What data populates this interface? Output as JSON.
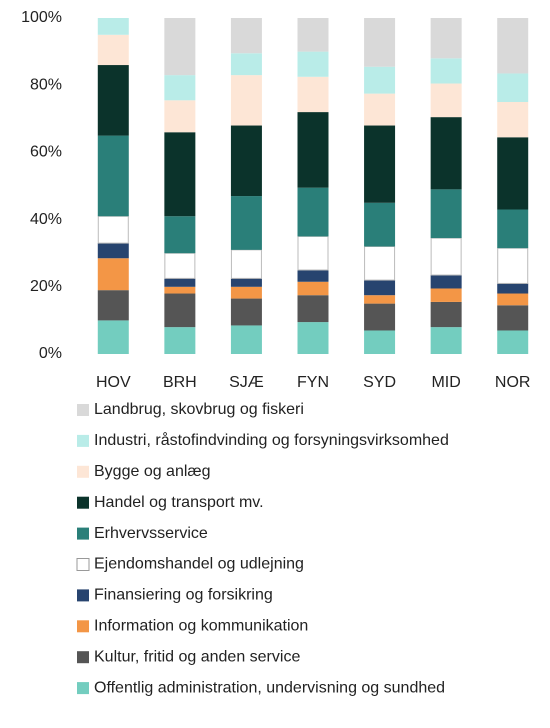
{
  "chart_data": {
    "type": "stacked_bar",
    "categories": [
      "HOV",
      "BRH",
      "SJÆ",
      "FYN",
      "SYD",
      "MID",
      "NOR"
    ],
    "ylim": [
      0,
      100
    ],
    "yticks": [
      {
        "value": 0,
        "label": "0%"
      },
      {
        "value": 20,
        "label": "20%"
      },
      {
        "value": 40,
        "label": "40%"
      },
      {
        "value": 60,
        "label": "60%"
      },
      {
        "value": 80,
        "label": "80%"
      },
      {
        "value": 100,
        "label": "100%"
      }
    ],
    "grid": false,
    "series": [
      {
        "name": "Offentlig administration, undervisning og sundhed",
        "color": "#73cdbf",
        "values": [
          10,
          8,
          8.5,
          9.5,
          7,
          8,
          7
        ]
      },
      {
        "name": "Kultur, fritid og anden service",
        "color": "#555555",
        "values": [
          9,
          10,
          8,
          8,
          8,
          7.5,
          7.5
        ]
      },
      {
        "name": "Information og kommunikation",
        "color": "#f39646",
        "values": [
          9.5,
          2,
          3.5,
          4,
          2.5,
          4,
          3.5
        ]
      },
      {
        "name": "Finansiering og forsikring",
        "color": "#27446f",
        "values": [
          4.5,
          2.5,
          2.5,
          3.5,
          4.5,
          4,
          3
        ]
      },
      {
        "name": "Ejendomshandel og udlejning",
        "color": "#ffffff",
        "values": [
          8,
          7.5,
          8.5,
          10,
          10,
          11,
          10.5
        ]
      },
      {
        "name": "Erhvervsservice",
        "color": "#2a7f79",
        "values": [
          24,
          11,
          16,
          14.5,
          13,
          14.5,
          11.5
        ]
      },
      {
        "name": "Handel og transport mv.",
        "color": "#0b332b",
        "values": [
          21,
          25,
          21,
          22.5,
          23,
          21.5,
          21.5
        ]
      },
      {
        "name": "Bygge og anlæg",
        "color": "#fde6d6",
        "values": [
          9,
          9.5,
          15,
          10.5,
          9.5,
          10,
          10.5
        ]
      },
      {
        "name": "Industri, råstofindvinding og forsyningsvirksomhed",
        "color": "#b9ece8",
        "values": [
          5,
          7.5,
          6.5,
          7.5,
          8,
          7.5,
          8.5
        ]
      },
      {
        "name": "Landbrug, skovbrug og fiskeri",
        "color": "#d9d9d9",
        "values": [
          0,
          17,
          10.5,
          10,
          14.5,
          12,
          16.5
        ]
      }
    ]
  }
}
